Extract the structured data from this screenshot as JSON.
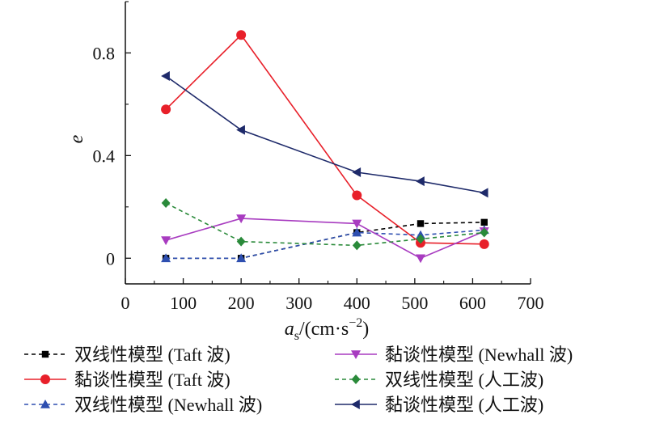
{
  "chart_data": {
    "type": "line",
    "xlabel": {
      "var": "a",
      "sub": "s",
      "slash": "/(cm·s",
      "sup": "−2",
      "close": ")"
    },
    "ylabel": "e",
    "xlim": [
      0,
      700
    ],
    "ylim": [
      -0.1,
      1.0
    ],
    "x_ticks": [
      0,
      100,
      200,
      300,
      400,
      500,
      600,
      700
    ],
    "y_ticks": [
      0,
      0.4,
      0.8
    ],
    "y_tick_labels": [
      "0",
      "0.4",
      "0.8"
    ],
    "legend_placement": "bottom, two columns",
    "series": [
      {
        "name": "双线性模型 (Taft 波)",
        "color": "#000000",
        "dash": "dashed",
        "marker": "square",
        "x": [
          70,
          200,
          400,
          510,
          620
        ],
        "y": [
          0.0,
          0.0,
          0.1,
          0.135,
          0.14
        ]
      },
      {
        "name": "黏谈性模型 (Taft 波)",
        "color": "#e8202a",
        "dash": "solid",
        "marker": "circle",
        "x": [
          70,
          200,
          400,
          510,
          620
        ],
        "y": [
          0.58,
          0.87,
          0.245,
          0.06,
          0.055
        ]
      },
      {
        "name": "双线性模型 (Newhall 波)",
        "color": "#2e4fb0",
        "dash": "dashed",
        "marker": "triangle-up",
        "x": [
          70,
          200,
          400,
          510,
          620
        ],
        "y": [
          0.0,
          0.0,
          0.1,
          0.09,
          0.11
        ]
      },
      {
        "name": "黏谈性模型 (Newhall 波)",
        "color": "#a83cc0",
        "dash": "solid",
        "marker": "triangle-down",
        "x": [
          70,
          200,
          400,
          510,
          620
        ],
        "y": [
          0.07,
          0.155,
          0.135,
          0.0,
          0.105
        ]
      },
      {
        "name": "双线性模型 (人工波)",
        "color": "#2a8a3a",
        "dash": "dashed",
        "marker": "diamond",
        "x": [
          70,
          200,
          400,
          510,
          620
        ],
        "y": [
          0.215,
          0.065,
          0.05,
          0.075,
          0.1
        ]
      },
      {
        "name": "黏谈性模型 (人工波)",
        "color": "#1e2a6a",
        "dash": "solid",
        "marker": "triangle-left",
        "x": [
          70,
          200,
          400,
          510,
          620
        ],
        "y": [
          0.71,
          0.5,
          0.335,
          0.3,
          0.255
        ]
      }
    ]
  }
}
